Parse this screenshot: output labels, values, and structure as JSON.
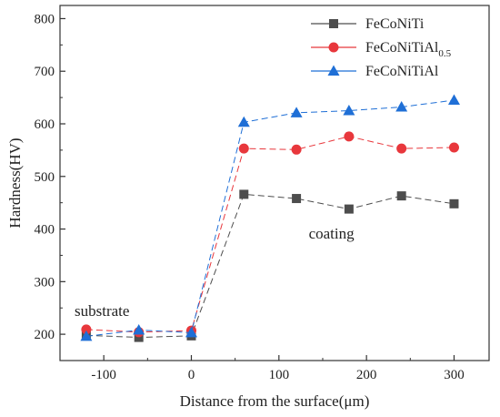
{
  "chart_data": {
    "type": "line",
    "title": "",
    "xlabel": "Distance from the surface(μm)",
    "ylabel": "Hardness(HV)",
    "xlim": [
      -150,
      340
    ],
    "ylim": [
      150,
      825
    ],
    "xticks": [
      -100,
      0,
      100,
      200,
      300
    ],
    "yticks": [
      200,
      300,
      400,
      500,
      600,
      700,
      800
    ],
    "grid": false,
    "legend_position": "top-right",
    "x": [
      -120,
      -60,
      0,
      60,
      120,
      180,
      240,
      300
    ],
    "series": [
      {
        "name": "FeCoNiTi",
        "name_parts": {
          "base": "FeCoNiTi",
          "sub": ""
        },
        "marker": "square",
        "color": "#4d4d4d",
        "values": [
          198,
          194,
          197,
          466,
          458,
          438,
          463,
          448
        ]
      },
      {
        "name": "FeCoNiTiAl0.5",
        "name_parts": {
          "base": "FeCoNiTiAl",
          "sub": "0.5"
        },
        "marker": "circle",
        "color": "#e8373c",
        "values": [
          209,
          204,
          207,
          553,
          551,
          576,
          553,
          555
        ]
      },
      {
        "name": "FeCoNiTiAl",
        "name_parts": {
          "base": "FeCoNiTiAl",
          "sub": ""
        },
        "marker": "triangle",
        "color": "#1f6fd6",
        "values": [
          196,
          208,
          203,
          603,
          621,
          625,
          632,
          645
        ]
      }
    ],
    "annotations": [
      {
        "text": "substrate",
        "x": -102,
        "y": 235
      },
      {
        "text": "coating",
        "x": 160,
        "y": 382
      }
    ]
  }
}
